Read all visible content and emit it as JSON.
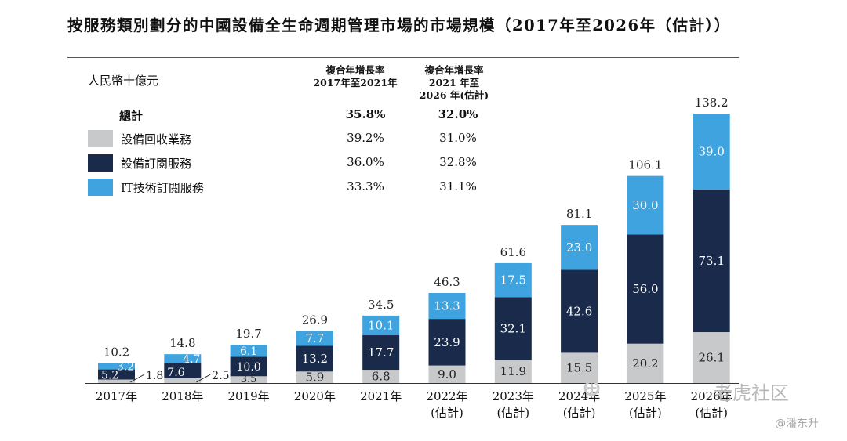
{
  "title": "按服務類別劃分的中國設備全生命週期管理市場的市場規模（2017年至2026年（估計））",
  "unit_label": "人民幣十億元",
  "cagr_headers": {
    "h1_line1": "複合年增長率",
    "h1_line2": "2017年至2021年",
    "h2_line1": "複合年增長率",
    "h2_line2": "2021 年至",
    "h2_line3": "2026 年(估計)"
  },
  "legend": {
    "total": {
      "label": "總計",
      "cagr1": "35.8%",
      "cagr2": "32.0%"
    },
    "recycling": {
      "label": "設備回收業務",
      "cagr1": "39.2%",
      "cagr2": "31.0%",
      "color": "#c8c9cb"
    },
    "subscription": {
      "label": "設備訂閱服務",
      "cagr1": "36.0%",
      "cagr2": "32.8%",
      "color": "#1a2a4a"
    },
    "it_subscription": {
      "label": "IT技術訂閱服務",
      "cagr1": "33.3%",
      "cagr2": "31.1%",
      "color": "#3ea3de"
    }
  },
  "chart_data": {
    "type": "bar",
    "stacked": true,
    "categories": [
      "2017年",
      "2018年",
      "2019年",
      "2020年",
      "2021年",
      "2022年\n(估計)",
      "2023年\n(估計)",
      "2024年\n(估計)",
      "2025年\n(估計)",
      "2026年\n(估計)"
    ],
    "series": [
      {
        "name": "設備回收業務",
        "color": "#c8c9cb",
        "values": [
          1.8,
          2.5,
          3.5,
          5.9,
          6.8,
          9.0,
          11.9,
          15.5,
          20.2,
          26.1
        ],
        "labels": [
          "1.8",
          "2.5",
          "3.5",
          "5.9",
          "6.8",
          "9.0",
          "11.9",
          "15.5",
          "20.2",
          "26.1"
        ]
      },
      {
        "name": "設備訂閱服務",
        "color": "#1a2a4a",
        "values": [
          5.2,
          7.6,
          10.0,
          13.2,
          17.7,
          23.9,
          32.1,
          42.6,
          56.0,
          73.1
        ],
        "labels": [
          "5.2",
          "7.6",
          "10.0",
          "13.2",
          "17.7",
          "23.9",
          "32.1",
          "42.6",
          "56.0",
          "73.1"
        ]
      },
      {
        "name": "IT技術訂閱服務",
        "color": "#3ea3de",
        "values": [
          3.2,
          4.7,
          6.1,
          7.7,
          10.1,
          13.3,
          17.5,
          23.0,
          30.0,
          39.0
        ],
        "labels": [
          "3.2",
          "4.7",
          "6.1",
          "7.7",
          "10.1",
          "13.3",
          "17.5",
          "23.0",
          "30.0",
          "39.0"
        ]
      }
    ],
    "totals": [
      10.2,
      14.8,
      19.7,
      26.9,
      34.5,
      46.3,
      61.6,
      81.1,
      106.1,
      138.2
    ],
    "total_labels": [
      "10.2",
      "14.8",
      "19.7",
      "26.9",
      "34.5",
      "46.3",
      "61.6",
      "81.1",
      "106.1",
      "138.2"
    ],
    "ylim": [
      0,
      138.2
    ],
    "grid": false,
    "legend_position": "top-left"
  },
  "watermarks": {
    "logo_text": "老虎社区",
    "author": "@潘东升"
  }
}
